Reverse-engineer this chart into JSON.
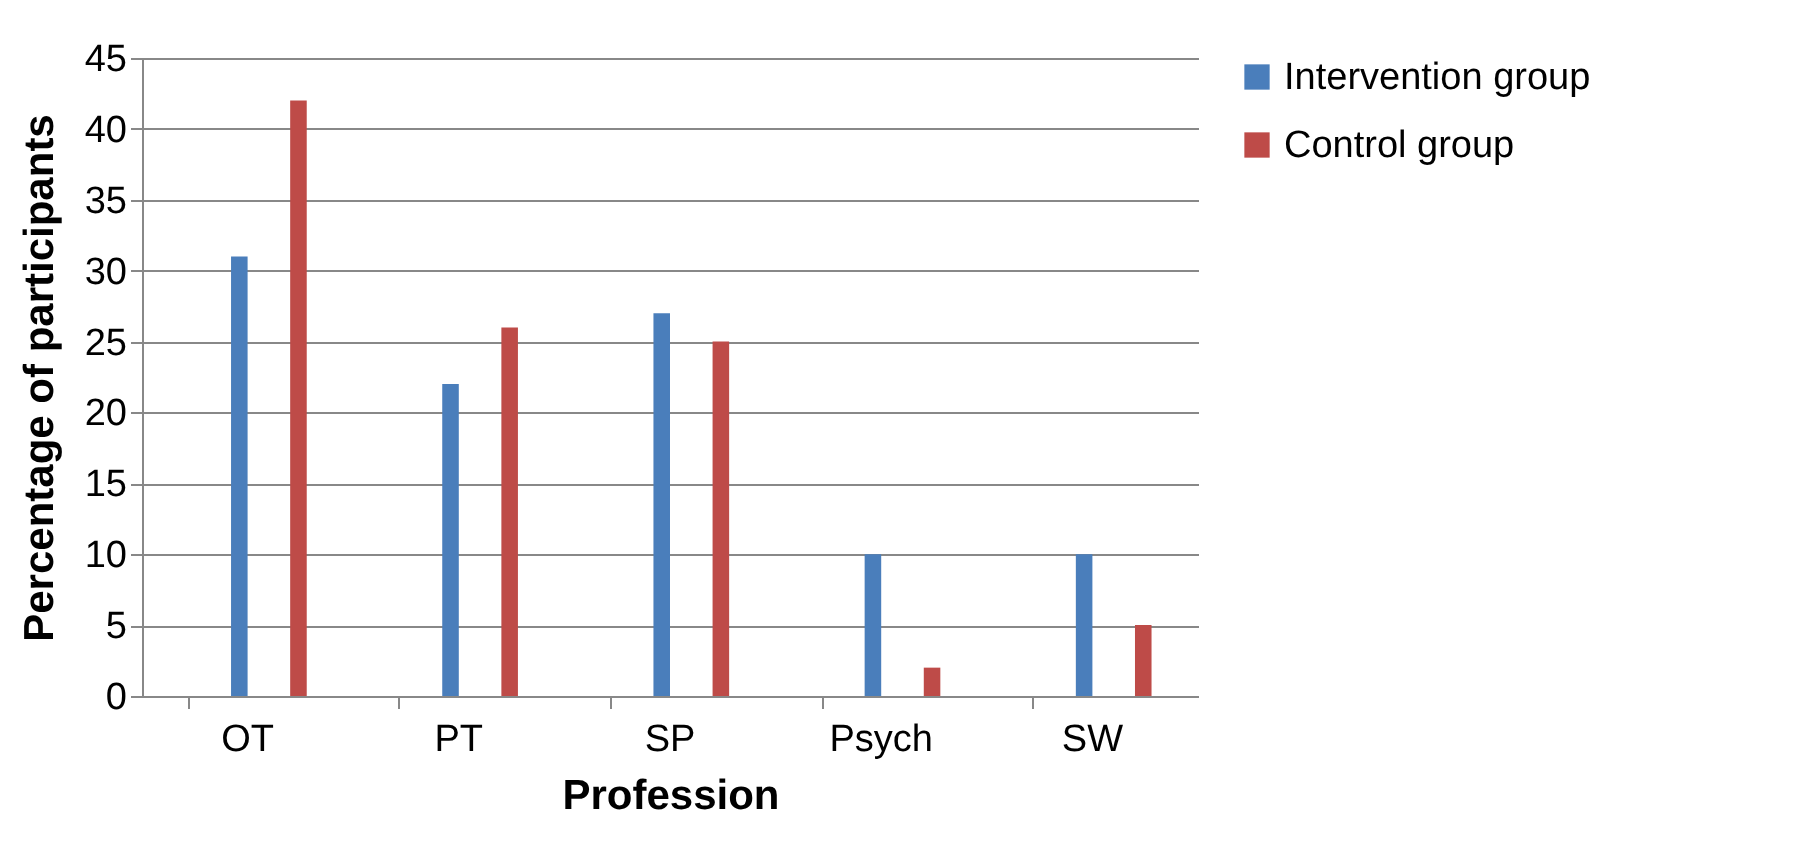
{
  "chart_data": {
    "type": "bar",
    "xlabel": "Profession",
    "ylabel": "Percentage of participants",
    "categories": [
      "OT",
      "PT",
      "SP",
      "Psych",
      "SW"
    ],
    "series": [
      {
        "name": "Intervention group",
        "color": "#4a7ebb",
        "values": [
          31,
          22,
          27,
          10,
          10
        ]
      },
      {
        "name": "Control group",
        "color": "#be4b48",
        "values": [
          42,
          26,
          25,
          2,
          5
        ]
      }
    ],
    "ylim": [
      0,
      45
    ],
    "yticks": [
      0,
      5,
      10,
      15,
      20,
      25,
      30,
      35,
      40,
      45
    ],
    "grid": "y",
    "legend": "right"
  }
}
